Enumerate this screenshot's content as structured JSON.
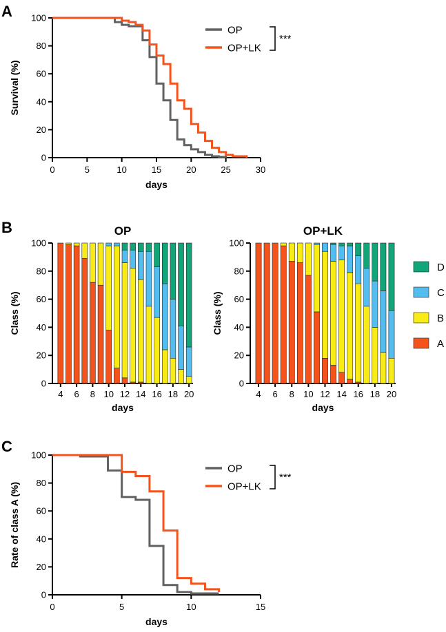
{
  "panels": [
    "A",
    "B",
    "C"
  ],
  "colors": {
    "OP": "#616161",
    "OP+LK": "#f5531c",
    "A": "#f5531c",
    "B": "#f9ec16",
    "C": "#52bdee",
    "D": "#12a57a"
  },
  "chart_data": [
    {
      "type": "line",
      "step": true,
      "panel": "A",
      "title": "",
      "xlabel": "days",
      "ylabel": "Survival (%)",
      "xlim": [
        0,
        30
      ],
      "ylim": [
        0,
        100
      ],
      "xticks": [
        0,
        5,
        10,
        15,
        20,
        25,
        30
      ],
      "yticks": [
        0,
        20,
        40,
        60,
        80,
        100
      ],
      "significance": "***",
      "series": [
        {
          "name": "OP",
          "x": [
            0,
            9,
            10,
            11,
            13,
            14,
            15,
            16,
            17,
            18,
            19,
            20,
            21,
            22,
            23,
            24,
            25
          ],
          "y": [
            100,
            97,
            95,
            94,
            84,
            72,
            53,
            41,
            27,
            13,
            9,
            6,
            4,
            2,
            1,
            0.5,
            0
          ]
        },
        {
          "name": "OP+LK",
          "x": [
            0,
            10,
            11,
            12,
            13,
            14,
            15,
            16,
            17,
            18,
            19,
            20,
            21,
            22,
            23,
            24,
            25,
            26,
            28
          ],
          "y": [
            100,
            98,
            97,
            95,
            91,
            81,
            73,
            67,
            53,
            41,
            35,
            24,
            18,
            12,
            7,
            4,
            2,
            1,
            0
          ]
        }
      ]
    },
    {
      "type": "bar",
      "stacked": true,
      "panel": "B",
      "title": "OP",
      "xlabel": "days",
      "ylabel": "Class (%)",
      "ylim": [
        0,
        100
      ],
      "categories": [
        4,
        5,
        6,
        7,
        8,
        9,
        10,
        11,
        12,
        13,
        14,
        15,
        16,
        17,
        18,
        19,
        20
      ],
      "xticks": [
        4,
        6,
        8,
        10,
        12,
        14,
        16,
        18,
        20
      ],
      "yticks": [
        0,
        20,
        40,
        60,
        80,
        100
      ],
      "series": [
        {
          "name": "A",
          "values": [
            100,
            99,
            98,
            89,
            72,
            70,
            38,
            11,
            4,
            1,
            1,
            0,
            0,
            0,
            0,
            0,
            0
          ]
        },
        {
          "name": "B",
          "values": [
            0,
            1,
            2,
            11,
            28,
            30,
            60,
            87,
            82,
            81,
            73,
            55,
            47,
            24,
            18,
            10,
            5
          ]
        },
        {
          "name": "C",
          "values": [
            0,
            0,
            0,
            0,
            0,
            0,
            2,
            2,
            9,
            13,
            20,
            39,
            36,
            47,
            42,
            31,
            21
          ]
        },
        {
          "name": "D",
          "values": [
            0,
            0,
            0,
            0,
            0,
            0,
            0,
            0,
            5,
            5,
            6,
            6,
            17,
            29,
            40,
            59,
            74
          ]
        }
      ]
    },
    {
      "type": "bar",
      "stacked": true,
      "panel": "B",
      "title": "OP+LK",
      "xlabel": "days",
      "ylabel": "Class (%)",
      "ylim": [
        0,
        100
      ],
      "categories": [
        4,
        5,
        6,
        7,
        8,
        9,
        10,
        11,
        12,
        13,
        14,
        15,
        16,
        17,
        18,
        19,
        20
      ],
      "xticks": [
        4,
        6,
        8,
        10,
        12,
        14,
        16,
        18,
        20
      ],
      "yticks": [
        0,
        20,
        40,
        60,
        80,
        100
      ],
      "series": [
        {
          "name": "A",
          "values": [
            100,
            100,
            100,
            98,
            87,
            86,
            77,
            51,
            18,
            13,
            8,
            3,
            1,
            0,
            0,
            0,
            0
          ]
        },
        {
          "name": "B",
          "values": [
            0,
            0,
            0,
            2,
            13,
            14,
            23,
            48,
            76,
            74,
            80,
            76,
            70,
            55,
            40,
            22,
            18
          ]
        },
        {
          "name": "C",
          "values": [
            0,
            0,
            0,
            0,
            0,
            0,
            0,
            1,
            6,
            12,
            10,
            19,
            20,
            27,
            33,
            44,
            34
          ]
        },
        {
          "name": "D",
          "values": [
            0,
            0,
            0,
            0,
            0,
            0,
            0,
            0,
            0,
            1,
            2,
            2,
            9,
            18,
            27,
            34,
            48
          ]
        }
      ],
      "legend": [
        "D",
        "C",
        "B",
        "A"
      ]
    },
    {
      "type": "line",
      "step": true,
      "panel": "C",
      "title": "",
      "xlabel": "days",
      "ylabel": "Rate of class A (%)",
      "xlim": [
        0,
        15
      ],
      "ylim": [
        0,
        100
      ],
      "xticks": [
        0,
        5,
        10,
        15
      ],
      "yticks": [
        0,
        20,
        40,
        60,
        80,
        100
      ],
      "significance": "***",
      "series": [
        {
          "name": "OP",
          "x": [
            0,
            2,
            4,
            5,
            6,
            7,
            8,
            9,
            10,
            12
          ],
          "y": [
            100,
            99,
            89,
            70,
            68,
            35,
            7,
            2,
            1,
            1
          ]
        },
        {
          "name": "OP+LK",
          "x": [
            0,
            5,
            6,
            7,
            8,
            9,
            10,
            11,
            12
          ],
          "y": [
            100,
            88,
            85,
            74,
            46,
            12,
            8,
            4,
            2
          ]
        }
      ]
    }
  ]
}
